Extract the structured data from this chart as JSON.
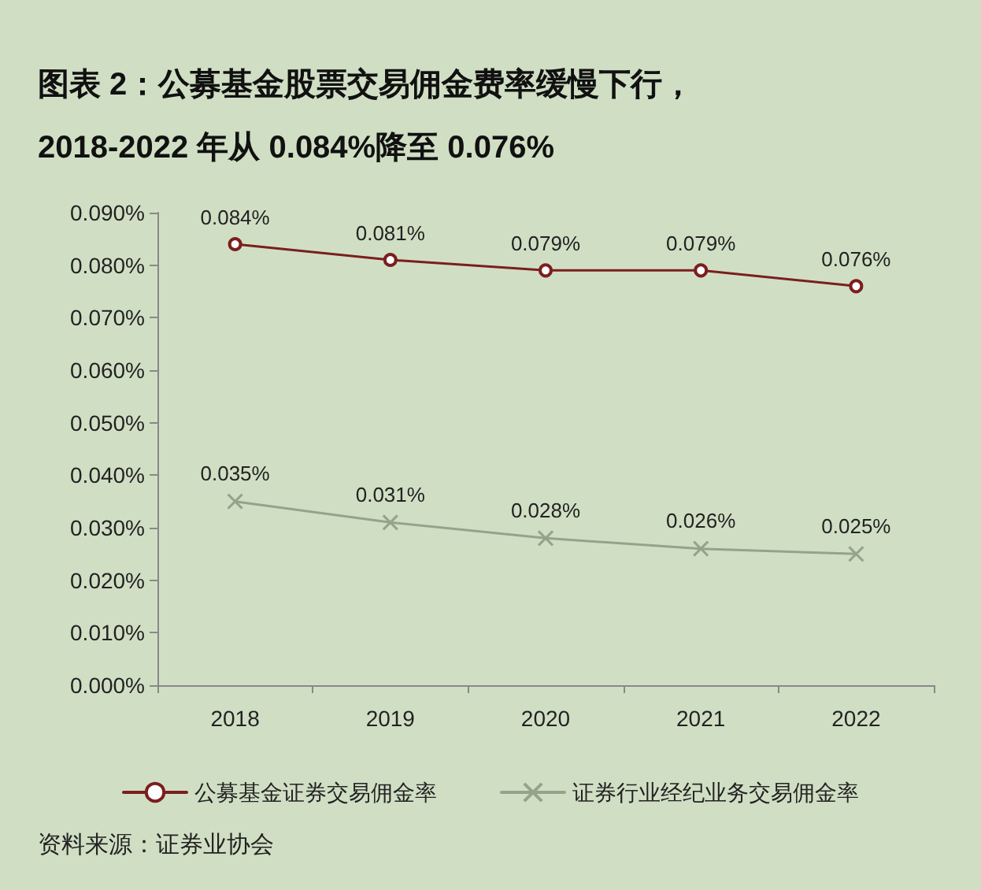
{
  "chart_data": {
    "type": "line",
    "title": "图表 2：公募基金股票交易佣金费率缓慢下行，",
    "subtitle": "2018-2022 年从 0.084%降至 0.076%",
    "categories": [
      "2018",
      "2019",
      "2020",
      "2021",
      "2022"
    ],
    "series": [
      {
        "name": "公募基金证券交易佣金率",
        "color": "#7b1e1e",
        "marker": "circle",
        "values": [
          0.084,
          0.081,
          0.079,
          0.079,
          0.076
        ],
        "value_labels": [
          "0.084%",
          "0.081%",
          "0.079%",
          "0.079%",
          "0.076%"
        ]
      },
      {
        "name": "证券行业经纪业务交易佣金率",
        "color": "#95a38a",
        "marker": "cross",
        "values": [
          0.035,
          0.031,
          0.028,
          0.026,
          0.025
        ],
        "value_labels": [
          "0.035%",
          "0.031%",
          "0.028%",
          "0.026%",
          "0.025%"
        ]
      }
    ],
    "ylim": [
      0,
      0.09
    ],
    "yticks": [
      {
        "value": 0,
        "label": "0.000%"
      },
      {
        "value": 0.01,
        "label": "0.010%"
      },
      {
        "value": 0.02,
        "label": "0.020%"
      },
      {
        "value": 0.03,
        "label": "0.030%"
      },
      {
        "value": 0.04,
        "label": "0.040%"
      },
      {
        "value": 0.05,
        "label": "0.050%"
      },
      {
        "value": 0.06,
        "label": "0.060%"
      },
      {
        "value": 0.07,
        "label": "0.070%"
      },
      {
        "value": 0.08,
        "label": "0.080%"
      },
      {
        "value": 0.09,
        "label": "0.090%"
      }
    ],
    "grid": false,
    "legend": "bottom",
    "line_style": "solid",
    "annotations": [
      "资料来源：证券业协会"
    ]
  }
}
